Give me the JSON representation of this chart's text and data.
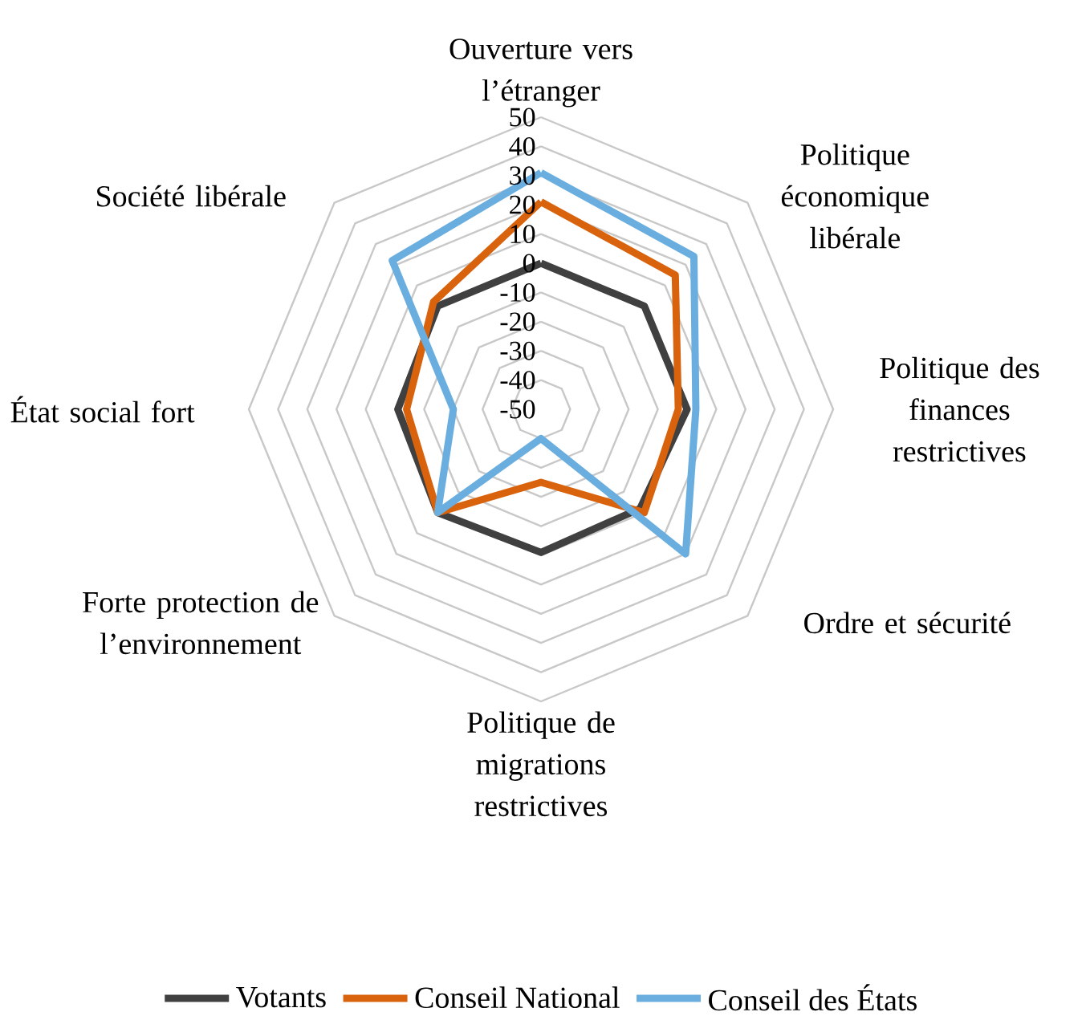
{
  "chart_data": {
    "type": "radar",
    "categories": [
      "Ouverture vers l’étranger",
      "Politique économique libérale",
      "Politique des finances restrictives",
      "Ordre et sécurité",
      "Politique de migrations restrictives",
      "Forte protection de l’environnement",
      "État social fort",
      "Société libérale"
    ],
    "series": [
      {
        "name": "Votants",
        "color": "#404040",
        "values": [
          0,
          0,
          0,
          -2,
          -1,
          0,
          -1,
          0
        ]
      },
      {
        "name": "Conseil National",
        "color": "#d9620c",
        "values": [
          21,
          15,
          -3,
          0,
          -25,
          0,
          -4,
          2
        ]
      },
      {
        "name": "Conseil des États",
        "color": "#6aaedf",
        "values": [
          31,
          24,
          3,
          20,
          -40,
          0,
          -20,
          22
        ]
      }
    ],
    "ylim": [
      -50,
      50
    ],
    "yticks": [
      -50,
      -40,
      -30,
      -20,
      -10,
      0,
      10,
      20,
      30,
      40,
      50
    ],
    "grid": true,
    "legend": "bottom",
    "line_style": "solid"
  }
}
